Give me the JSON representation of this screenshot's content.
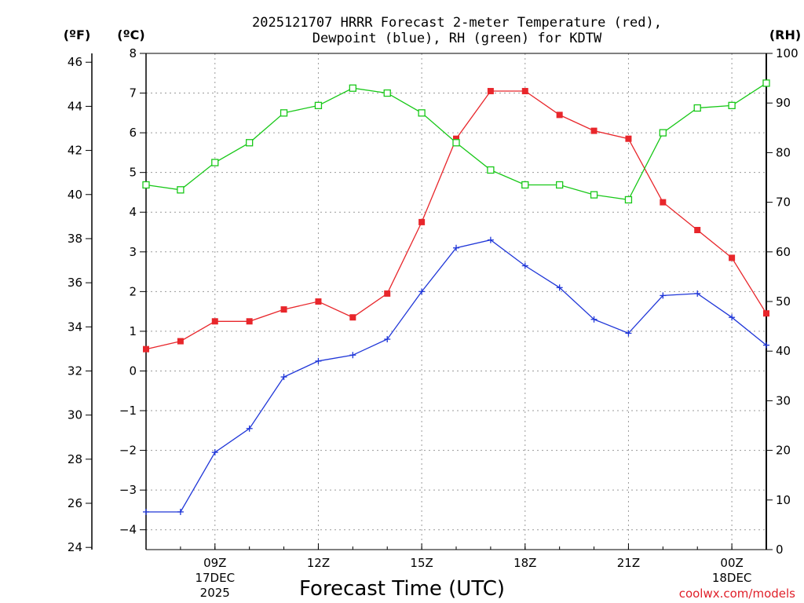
{
  "colors": {
    "temperature": "#e8262b",
    "dewpoint": "#1f36d8",
    "rh": "#18c818",
    "grid": "#9a9a9a"
  },
  "chart_data": {
    "type": "line",
    "title_line1": "2025121707 HRRR Forecast 2-meter Temperature (red),",
    "title_line2": "Dewpoint (blue), RH (green) for KDTW",
    "xlabel": "Forecast Time (UTC)",
    "credit": "coolwx.com/models",
    "units": {
      "fahrenheit": "(ºF)",
      "celsius": "(ºC)",
      "rh": "(RH)"
    },
    "x_hours": [
      7,
      8,
      9,
      10,
      11,
      12,
      13,
      14,
      15,
      16,
      17,
      18,
      19,
      20,
      21,
      22,
      23,
      24,
      25
    ],
    "xlim": [
      7,
      25
    ],
    "x_ticks": [
      {
        "hour": 9,
        "label": "09Z",
        "date": "17DEC",
        "year": "2025"
      },
      {
        "hour": 12,
        "label": "12Z"
      },
      {
        "hour": 15,
        "label": "15Z"
      },
      {
        "hour": 18,
        "label": "18Z"
      },
      {
        "hour": 21,
        "label": "21Z"
      },
      {
        "hour": 24,
        "label": "00Z",
        "date": "18DEC"
      }
    ],
    "y_celsius": {
      "range": [
        -4.5,
        8
      ],
      "ticks": [
        "−4",
        "−3",
        "−2",
        "−1",
        "0",
        "1",
        "2",
        "3",
        "4",
        "5",
        "6",
        "7",
        "8"
      ]
    },
    "y_fahrenheit": {
      "ticks": [
        "24",
        "26",
        "28",
        "30",
        "32",
        "34",
        "36",
        "38",
        "40",
        "42",
        "44",
        "46"
      ]
    },
    "y_rh": {
      "range": [
        0,
        100
      ],
      "ticks": [
        "0",
        "10",
        "20",
        "30",
        "40",
        "50",
        "60",
        "70",
        "80",
        "90",
        "100"
      ]
    },
    "series": [
      {
        "name": "Temperature",
        "unit": "C",
        "marker": "filled-square",
        "values": [
          0.55,
          0.75,
          1.25,
          1.25,
          1.55,
          1.75,
          1.35,
          1.95,
          3.75,
          5.85,
          7.05,
          7.05,
          6.45,
          6.05,
          5.85,
          4.25,
          3.55,
          2.85,
          1.45
        ]
      },
      {
        "name": "Dewpoint",
        "unit": "C",
        "marker": "plus",
        "values": [
          -3.55,
          -3.55,
          -2.05,
          -1.45,
          -0.15,
          0.25,
          0.4,
          0.8,
          2.0,
          3.1,
          3.3,
          2.65,
          2.1,
          1.3,
          0.95,
          1.9,
          1.95,
          1.35,
          0.65
        ]
      },
      {
        "name": "RH",
        "unit": "%",
        "marker": "open-square",
        "values": [
          73.5,
          72.5,
          78.0,
          82.0,
          88.0,
          89.5,
          93.0,
          92.0,
          88.0,
          82.0,
          76.5,
          73.5,
          73.5,
          71.5,
          70.5,
          84.0,
          89.0,
          89.5,
          94.0
        ]
      }
    ]
  }
}
